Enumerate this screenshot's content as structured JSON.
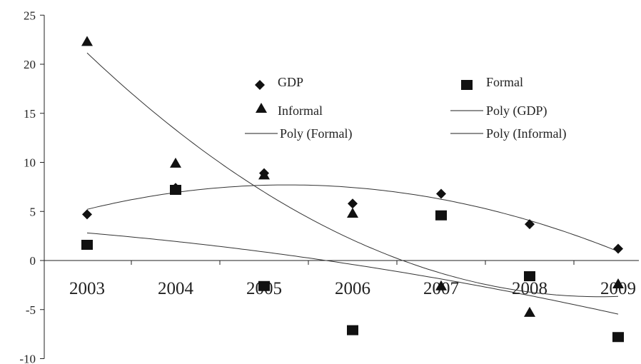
{
  "chart_data": {
    "type": "scatter",
    "title": "",
    "xlabel": "",
    "ylabel": "",
    "categories": [
      "2003",
      "2004",
      "2005",
      "2006",
      "2007",
      "2008",
      "2009"
    ],
    "ylim": [
      -10,
      25
    ],
    "yticks": [
      -10,
      -5,
      0,
      5,
      10,
      15,
      20,
      25
    ],
    "grid": false,
    "legend_position": "top-right",
    "legend": {
      "gdp": "GDP",
      "formal": "Formal",
      "informal": "Informal",
      "poly_gdp": "Poly (GDP)",
      "poly_formal": "Poly (Formal)",
      "poly_informal": "Poly (Informal)"
    },
    "series": [
      {
        "name": "GDP",
        "marker": "diamond",
        "values": [
          4.7,
          7.4,
          8.9,
          5.8,
          6.8,
          3.7,
          1.2
        ]
      },
      {
        "name": "Formal",
        "marker": "square",
        "values": [
          1.6,
          7.2,
          -2.6,
          -7.1,
          4.6,
          -1.6,
          -7.8
        ]
      },
      {
        "name": "Informal",
        "marker": "triangle",
        "values": [
          22.3,
          9.9,
          8.7,
          4.8,
          -2.6,
          -5.3,
          -2.4
        ]
      }
    ],
    "trendlines": [
      {
        "name": "Poly (GDP)",
        "of": "GDP",
        "degree": 2
      },
      {
        "name": "Poly (Formal)",
        "of": "Formal",
        "degree": 2
      },
      {
        "name": "Poly (Informal)",
        "of": "Informal",
        "degree": 2
      }
    ]
  }
}
